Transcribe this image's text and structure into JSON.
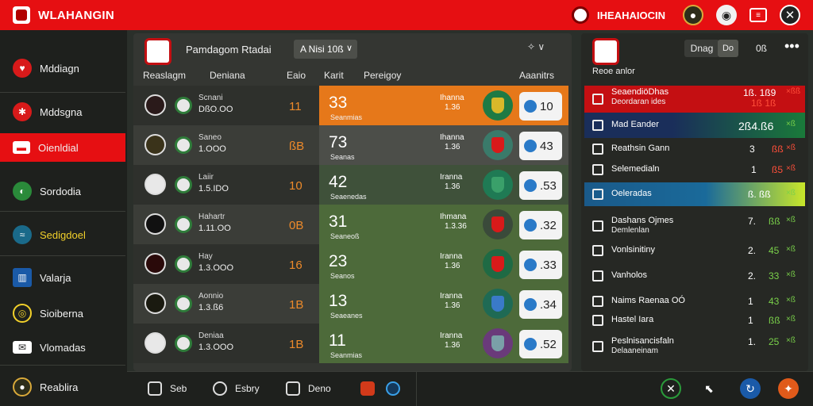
{
  "app": {
    "title": "WLAHANGIN"
  },
  "header": {
    "club_name": "IHEAHAIOCIN"
  },
  "sidebar": {
    "items": [
      {
        "label": "Mddiagn"
      },
      {
        "label": "Mddsgna"
      },
      {
        "label": "Oienldial"
      },
      {
        "label": "Sordodia"
      },
      {
        "label": "Sedigdoel"
      },
      {
        "label": "Valarja"
      },
      {
        "label": "Sioiberna"
      },
      {
        "label": "Vlomadas"
      },
      {
        "label": "Reablira"
      }
    ]
  },
  "main": {
    "title": "Pamdagom Rtadai",
    "dropdown": "A Nisi 10ß",
    "pager": "✧ ∨",
    "columns": [
      "Reaslagm",
      "Deniana",
      "Eaio",
      "Karit",
      "Pereigoy",
      "Aaanitrs"
    ],
    "rows": [
      {
        "dname": "Scnani",
        "dval": "DßO.OO",
        "k": "11",
        "score": "33",
        "scap": "Seanmias",
        "mid1": "Ihanna",
        "mid2": "1.36",
        "pill": "10"
      },
      {
        "dname": "Saneo",
        "dval": "1.OOO",
        "k": "ßB",
        "score": "73",
        "scap": "Seanas",
        "mid1": "Ihanna",
        "mid2": "1.36",
        "pill": "43"
      },
      {
        "dname": "Laiir",
        "dval": "1.5.IDO",
        "k": "10",
        "score": "42",
        "scap": "Seaenedas",
        "mid1": "Iranna",
        "mid2": "1.36",
        "pill": ".53"
      },
      {
        "dname": "Hahartr",
        "dval": "1.11.OO",
        "k": "0B",
        "score": "31",
        "scap": "Seaneoß",
        "mid1": "Ihmana",
        "mid2": "1.3.36",
        "pill": ".32"
      },
      {
        "dname": "Hay",
        "dval": "1.3.OOO",
        "k": "16",
        "score": "23",
        "scap": "Seanos",
        "mid1": "Iranna",
        "mid2": "1.36",
        "pill": ".33"
      },
      {
        "dname": "Aonnio",
        "dval": "1.3.ß6",
        "k": "1B",
        "score": "13",
        "scap": "Seaeanes",
        "mid1": "Iranna",
        "mid2": "1.36",
        "pill": ".34"
      },
      {
        "dname": "Deniaa",
        "dval": "1.3.OOO",
        "k": "1B",
        "score": "11",
        "scap": "Seanmias",
        "mid1": "Iranna",
        "mid2": "1.36",
        "pill": ".52"
      }
    ]
  },
  "bottombar": {
    "items": [
      {
        "label": "Seb"
      },
      {
        "label": "Esbry"
      },
      {
        "label": "Deno"
      }
    ]
  },
  "rpanel": {
    "subtitle": "Reoe anlor",
    "tab1": "Dnag",
    "tab2": "Dο",
    "num": "0ß",
    "rows": [
      {
        "name": "SeaendiöDhas",
        "sub": "Deordaran ides",
        "v1": "1ß. 1ß9",
        "v2": "1ß 1ß",
        "a": "×ßß"
      },
      {
        "name": "Mad Eander",
        "sub": "",
        "v1": "2ß4.ß6",
        "v2": "",
        "a": "×ß"
      },
      {
        "name": "Reathsin Gann",
        "sub": "",
        "v1": "3",
        "v2": "ßß",
        "a": "×ß"
      },
      {
        "name": "Selemedialn",
        "sub": "",
        "v1": "1",
        "v2": "ß5",
        "a": "×ß"
      },
      {
        "name": "Oeleradas",
        "sub": "",
        "v1": "ß. ßß",
        "v2": "",
        "a": "×ß"
      },
      {
        "name": "Dashans Ojmes",
        "sub": "Demlenlan",
        "v1": "7.",
        "v2": "ßß",
        "a": "×ß"
      },
      {
        "name": "Vonlsinitiny",
        "sub": "",
        "v1": "2.",
        "v2": "45",
        "a": "×ß"
      },
      {
        "name": "Vanholos",
        "sub": "",
        "v1": "2.",
        "v2": "33",
        "a": "×ß"
      },
      {
        "name": "Naims Raenaa OÓ",
        "sub": "",
        "v1": "1",
        "v2": "43",
        "a": "×ß"
      },
      {
        "name": "Hastel Iara",
        "sub": "",
        "v1": "1",
        "v2": "ßß",
        "a": "×ß"
      },
      {
        "name": "Peslnisancisfaln",
        "sub": "Delaaneinam",
        "v1": "1.",
        "v2": "25",
        "a": "×ß"
      }
    ]
  },
  "colors": {
    "brand": "#e60f12",
    "accent_orange": "#e6781a",
    "accent_lime": "#c8e62a"
  }
}
